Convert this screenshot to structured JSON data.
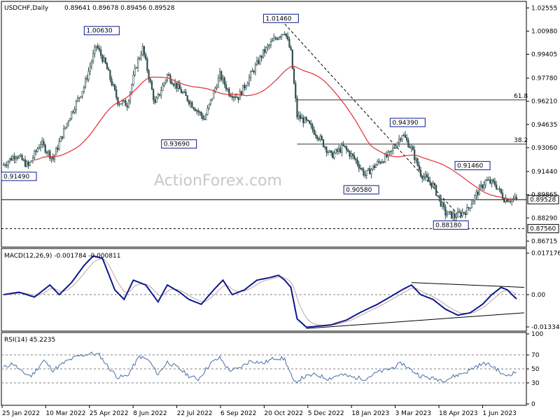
{
  "header": {
    "symbol": "USDCHF,Daily",
    "ohlc": "0.89641 0.89678 0.89456 0.89528"
  },
  "watermark": "ActionForex.com",
  "colors": {
    "candle": "#2f4f4f",
    "ma": "#e03030",
    "macd": "#0a1a8c",
    "signal": "#c8a0a0",
    "rsi": "#4a6fa5",
    "level": "#808080",
    "label_border": "#0a1a8c"
  },
  "chart_data": [
    {
      "type": "candlestick",
      "title": "USDCHF,Daily",
      "ylim": [
        0.864,
        1.029
      ],
      "y_ticks": [
        "1.02555",
        "1.00980",
        "0.99405",
        "0.97780",
        "0.96210",
        "0.94635",
        "0.93060",
        "0.91440",
        "0.89865",
        "0.88290",
        "0.86715"
      ],
      "x_tick_labels": [
        "25 Jan 2022",
        "10 Mar 2022",
        "25 Apr 2022",
        "8 Jun 2022",
        "22 Jul 2022",
        "6 Sep 2022",
        "20 Oct 2022",
        "5 Dec 2022",
        "18 Jan 2023",
        "3 Mar 2023",
        "18 Apr 2023",
        "1 Jun 2023"
      ],
      "close_anchors": [
        {
          "t": 0,
          "v": 0.919
        },
        {
          "t": 8,
          "v": 0.926
        },
        {
          "t": 16,
          "v": 0.918
        },
        {
          "t": 24,
          "v": 0.934
        },
        {
          "t": 32,
          "v": 0.923
        },
        {
          "t": 42,
          "v": 0.95
        },
        {
          "t": 52,
          "v": 0.972
        },
        {
          "t": 60,
          "v": 1.0
        },
        {
          "t": 66,
          "v": 0.987
        },
        {
          "t": 74,
          "v": 0.962
        },
        {
          "t": 80,
          "v": 0.96
        },
        {
          "t": 86,
          "v": 0.987
        },
        {
          "t": 90,
          "v": 0.998
        },
        {
          "t": 98,
          "v": 0.96
        },
        {
          "t": 106,
          "v": 0.98
        },
        {
          "t": 114,
          "v": 0.97
        },
        {
          "t": 122,
          "v": 0.96
        },
        {
          "t": 130,
          "v": 0.95
        },
        {
          "t": 140,
          "v": 0.98
        },
        {
          "t": 146,
          "v": 0.968
        },
        {
          "t": 152,
          "v": 0.965
        },
        {
          "t": 160,
          "v": 0.98
        },
        {
          "t": 168,
          "v": 0.995
        },
        {
          "t": 176,
          "v": 1.005
        },
        {
          "t": 182,
          "v": 1.01
        },
        {
          "t": 186,
          "v": 0.995
        },
        {
          "t": 190,
          "v": 0.952
        },
        {
          "t": 196,
          "v": 0.948
        },
        {
          "t": 204,
          "v": 0.938
        },
        {
          "t": 212,
          "v": 0.925
        },
        {
          "t": 220,
          "v": 0.931
        },
        {
          "t": 228,
          "v": 0.922
        },
        {
          "t": 234,
          "v": 0.912
        },
        {
          "t": 242,
          "v": 0.92
        },
        {
          "t": 250,
          "v": 0.926
        },
        {
          "t": 258,
          "v": 0.94
        },
        {
          "t": 264,
          "v": 0.93
        },
        {
          "t": 270,
          "v": 0.913
        },
        {
          "t": 278,
          "v": 0.905
        },
        {
          "t": 286,
          "v": 0.886
        },
        {
          "t": 292,
          "v": 0.884
        },
        {
          "t": 300,
          "v": 0.888
        },
        {
          "t": 306,
          "v": 0.899
        },
        {
          "t": 312,
          "v": 0.908
        },
        {
          "t": 318,
          "v": 0.906
        },
        {
          "t": 324,
          "v": 0.896
        },
        {
          "t": 332,
          "v": 0.8953
        }
      ],
      "horizontal_levels": [
        {
          "value": 0.89528,
          "label": "0.89528",
          "style": "solid"
        },
        {
          "value": 0.8756,
          "label": "0.87560",
          "style": "dashed"
        }
      ],
      "fib_levels": [
        {
          "value": 0.963,
          "label": "61.8"
        },
        {
          "value": 0.933,
          "label": "38.2"
        }
      ],
      "price_labels": [
        {
          "t": 0,
          "v": 0.9149,
          "text": "0.91490"
        },
        {
          "t": 64,
          "v": 1.0063,
          "text": "1.00630"
        },
        {
          "t": 114,
          "v": 0.9369,
          "text": "0.93690"
        },
        {
          "t": 180,
          "v": 1.0146,
          "text": "1.01460"
        },
        {
          "t": 232,
          "v": 0.9058,
          "text": "0.90580"
        },
        {
          "t": 262,
          "v": 0.9439,
          "text": "0.94390"
        },
        {
          "t": 290,
          "v": 0.8818,
          "text": "0.88180"
        },
        {
          "t": 304,
          "v": 0.9146,
          "text": "0.91460"
        }
      ],
      "trendline": {
        "t1": 182,
        "v1": 1.0146,
        "t2": 296,
        "v2": 0.883
      }
    },
    {
      "type": "line",
      "title": "MACD(12,26,9) -0.001784 -0.000811",
      "ylim": [
        -0.0145,
        0.0185
      ],
      "y_ticks": [
        "0.017176",
        "0.00",
        "-0.01334"
      ],
      "series_anchors": [
        {
          "t": 0,
          "v": 0.0
        },
        {
          "t": 10,
          "v": 0.001
        },
        {
          "t": 20,
          "v": -0.001
        },
        {
          "t": 30,
          "v": 0.004
        },
        {
          "t": 36,
          "v": 0.0
        },
        {
          "t": 44,
          "v": 0.005
        },
        {
          "t": 52,
          "v": 0.012
        },
        {
          "t": 58,
          "v": 0.016
        },
        {
          "t": 64,
          "v": 0.015
        },
        {
          "t": 72,
          "v": 0.002
        },
        {
          "t": 78,
          "v": -0.002
        },
        {
          "t": 84,
          "v": 0.006
        },
        {
          "t": 92,
          "v": 0.004
        },
        {
          "t": 100,
          "v": -0.003
        },
        {
          "t": 106,
          "v": 0.004
        },
        {
          "t": 114,
          "v": 0.001
        },
        {
          "t": 120,
          "v": -0.002
        },
        {
          "t": 128,
          "v": -0.004
        },
        {
          "t": 136,
          "v": 0.002
        },
        {
          "t": 142,
          "v": 0.006
        },
        {
          "t": 148,
          "v": 0.0
        },
        {
          "t": 156,
          "v": 0.002
        },
        {
          "t": 164,
          "v": 0.006
        },
        {
          "t": 172,
          "v": 0.007
        },
        {
          "t": 178,
          "v": 0.008
        },
        {
          "t": 182,
          "v": 0.006
        },
        {
          "t": 186,
          "v": 0.003
        },
        {
          "t": 190,
          "v": -0.01
        },
        {
          "t": 196,
          "v": -0.0135
        },
        {
          "t": 204,
          "v": -0.013
        },
        {
          "t": 212,
          "v": -0.0125
        },
        {
          "t": 222,
          "v": -0.0105
        },
        {
          "t": 232,
          "v": -0.007
        },
        {
          "t": 242,
          "v": -0.004
        },
        {
          "t": 250,
          "v": -0.001
        },
        {
          "t": 258,
          "v": 0.002
        },
        {
          "t": 264,
          "v": 0.004
        },
        {
          "t": 270,
          "v": 0.0
        },
        {
          "t": 278,
          "v": -0.002
        },
        {
          "t": 286,
          "v": -0.006
        },
        {
          "t": 294,
          "v": -0.0085
        },
        {
          "t": 302,
          "v": -0.0075
        },
        {
          "t": 310,
          "v": -0.004
        },
        {
          "t": 316,
          "v": 0.0
        },
        {
          "t": 322,
          "v": 0.003
        },
        {
          "t": 326,
          "v": 0.002
        },
        {
          "t": 332,
          "v": -0.0018
        }
      ],
      "trendlines": [
        {
          "t1": 264,
          "v1": 0.005,
          "t2": 337,
          "v2": 0.003
        },
        {
          "t1": 196,
          "v1": -0.014,
          "t2": 337,
          "v2": -0.0075
        }
      ]
    },
    {
      "type": "line",
      "title": "RSI(14) 45.2235",
      "ylim": [
        0,
        100
      ],
      "y_ticks": [
        "100",
        "70",
        "50",
        "30",
        "0"
      ],
      "series_anchors": [
        {
          "t": 0,
          "v": 52
        },
        {
          "t": 6,
          "v": 58
        },
        {
          "t": 12,
          "v": 45
        },
        {
          "t": 18,
          "v": 40
        },
        {
          "t": 26,
          "v": 62
        },
        {
          "t": 32,
          "v": 48
        },
        {
          "t": 40,
          "v": 60
        },
        {
          "t": 48,
          "v": 68
        },
        {
          "t": 56,
          "v": 72
        },
        {
          "t": 62,
          "v": 70
        },
        {
          "t": 68,
          "v": 52
        },
        {
          "t": 74,
          "v": 38
        },
        {
          "t": 80,
          "v": 40
        },
        {
          "t": 88,
          "v": 68
        },
        {
          "t": 94,
          "v": 62
        },
        {
          "t": 100,
          "v": 42
        },
        {
          "t": 106,
          "v": 60
        },
        {
          "t": 114,
          "v": 50
        },
        {
          "t": 120,
          "v": 40
        },
        {
          "t": 126,
          "v": 35
        },
        {
          "t": 134,
          "v": 58
        },
        {
          "t": 140,
          "v": 66
        },
        {
          "t": 146,
          "v": 48
        },
        {
          "t": 152,
          "v": 50
        },
        {
          "t": 160,
          "v": 62
        },
        {
          "t": 168,
          "v": 58
        },
        {
          "t": 176,
          "v": 66
        },
        {
          "t": 182,
          "v": 64
        },
        {
          "t": 188,
          "v": 30
        },
        {
          "t": 194,
          "v": 38
        },
        {
          "t": 202,
          "v": 42
        },
        {
          "t": 210,
          "v": 36
        },
        {
          "t": 218,
          "v": 42
        },
        {
          "t": 226,
          "v": 38
        },
        {
          "t": 234,
          "v": 36
        },
        {
          "t": 242,
          "v": 45
        },
        {
          "t": 250,
          "v": 50
        },
        {
          "t": 258,
          "v": 58
        },
        {
          "t": 264,
          "v": 48
        },
        {
          "t": 270,
          "v": 40
        },
        {
          "t": 278,
          "v": 36
        },
        {
          "t": 286,
          "v": 34
        },
        {
          "t": 292,
          "v": 40
        },
        {
          "t": 300,
          "v": 46
        },
        {
          "t": 306,
          "v": 54
        },
        {
          "t": 312,
          "v": 58
        },
        {
          "t": 318,
          "v": 52
        },
        {
          "t": 324,
          "v": 40
        },
        {
          "t": 332,
          "v": 45.2
        }
      ]
    }
  ]
}
